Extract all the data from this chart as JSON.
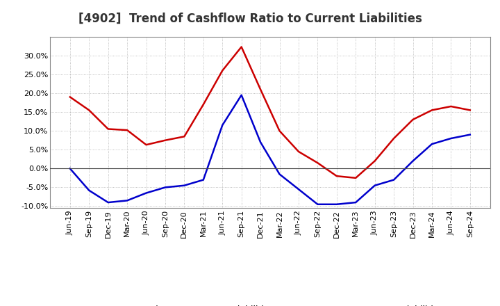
{
  "title": "[4902]  Trend of Cashflow Ratio to Current Liabilities",
  "x_labels": [
    "Jun-19",
    "Sep-19",
    "Dec-19",
    "Mar-20",
    "Jun-20",
    "Sep-20",
    "Dec-20",
    "Mar-21",
    "Jun-21",
    "Sep-21",
    "Dec-21",
    "Mar-22",
    "Jun-22",
    "Sep-22",
    "Dec-22",
    "Mar-23",
    "Jun-23",
    "Sep-23",
    "Dec-23",
    "Mar-24",
    "Jun-24",
    "Sep-24"
  ],
  "operating_cf": [
    19.0,
    15.5,
    10.5,
    10.2,
    6.3,
    7.5,
    8.5,
    17.0,
    26.0,
    32.3,
    21.0,
    10.0,
    4.5,
    1.5,
    -2.0,
    -2.5,
    2.0,
    8.0,
    13.0,
    15.5,
    16.5,
    15.5
  ],
  "free_cf": [
    0.0,
    -5.8,
    -9.0,
    -8.5,
    -6.5,
    -5.0,
    -4.5,
    -3.0,
    11.5,
    19.5,
    7.0,
    -1.5,
    -5.5,
    -9.5,
    -9.5,
    -9.0,
    -4.5,
    -3.0,
    2.0,
    6.5,
    8.0,
    9.0
  ],
  "operating_color": "#cc0000",
  "free_color": "#0000cc",
  "ylim": [
    -10.5,
    35.0
  ],
  "yticks": [
    -10.0,
    -5.0,
    0.0,
    5.0,
    10.0,
    15.0,
    20.0,
    25.0,
    30.0
  ],
  "background_color": "#ffffff",
  "plot_bg_color": "#ffffff",
  "grid_color": "#999999",
  "legend_operating": "Operating CF to Current Liabilities",
  "legend_free": "Free CF to Current Liabilities",
  "title_fontsize": 12,
  "tick_fontsize": 8,
  "line_width": 1.8
}
